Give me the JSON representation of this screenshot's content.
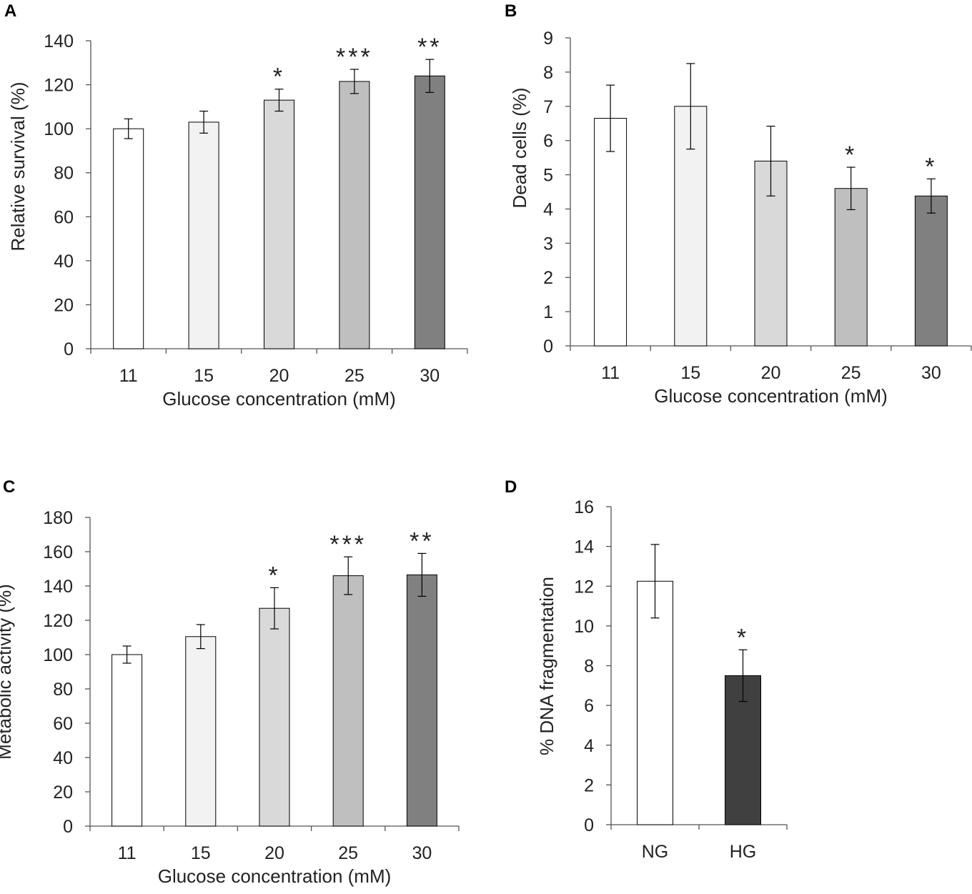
{
  "panels": [
    {
      "letter": "A"
    },
    {
      "letter": "B"
    },
    {
      "letter": "C"
    },
    {
      "letter": "D"
    }
  ],
  "chart_data": [
    {
      "type": "bar",
      "panel": "A",
      "title": "",
      "categories": [
        "11",
        "15",
        "20",
        "25",
        "30"
      ],
      "values": [
        100,
        103,
        113,
        121.5,
        124
      ],
      "errors": [
        4.5,
        5,
        5,
        5.5,
        7.5
      ],
      "significance": [
        "",
        "",
        "*",
        "***",
        "**"
      ],
      "colors": [
        "#ffffff",
        "#f2f2f2",
        "#d9d9d9",
        "#bfbfbf",
        "#808080"
      ],
      "xlabel": "Glucose concentration (mM)",
      "ylabel": "Relative survival (%)",
      "ylim": [
        0,
        140
      ],
      "yticks": [
        0,
        20,
        40,
        60,
        80,
        100,
        120,
        140
      ]
    },
    {
      "type": "bar",
      "panel": "B",
      "title": "",
      "categories": [
        "11",
        "15",
        "20",
        "25",
        "30"
      ],
      "values": [
        6.65,
        7.0,
        5.4,
        4.6,
        4.38
      ],
      "errors": [
        0.97,
        1.25,
        1.02,
        0.62,
        0.5
      ],
      "significance": [
        "",
        "",
        "",
        "*",
        "*"
      ],
      "colors": [
        "#ffffff",
        "#f2f2f2",
        "#d9d9d9",
        "#bfbfbf",
        "#808080"
      ],
      "xlabel": "Glucose concentration (mM)",
      "ylabel": "Dead cells (%)",
      "ylim": [
        0,
        9
      ],
      "yticks": [
        0,
        1,
        2,
        3,
        4,
        5,
        6,
        7,
        8,
        9
      ]
    },
    {
      "type": "bar",
      "panel": "C",
      "title": "",
      "categories": [
        "11",
        "15",
        "20",
        "25",
        "30"
      ],
      "values": [
        100,
        110.5,
        127,
        146,
        146.5
      ],
      "errors": [
        5,
        7,
        12,
        11,
        12.5
      ],
      "significance": [
        "",
        "",
        "*",
        "***",
        "**"
      ],
      "colors": [
        "#ffffff",
        "#f2f2f2",
        "#d9d9d9",
        "#bfbfbf",
        "#808080"
      ],
      "xlabel": "Glucose concentration (mM)",
      "ylabel": "Metabolic activity (%)",
      "ylim": [
        0,
        180
      ],
      "yticks": [
        0,
        20,
        40,
        60,
        80,
        100,
        120,
        140,
        160,
        180
      ]
    },
    {
      "type": "bar",
      "panel": "D",
      "title": "",
      "categories": [
        "NG",
        "HG"
      ],
      "values": [
        12.25,
        7.5
      ],
      "errors": [
        1.85,
        1.3
      ],
      "significance": [
        "",
        "*"
      ],
      "colors": [
        "#ffffff",
        "#404040"
      ],
      "xlabel": "",
      "ylabel": "% DNA fragmentation",
      "ylim": [
        0,
        16
      ],
      "yticks": [
        0,
        2,
        4,
        6,
        8,
        10,
        12,
        14,
        16
      ]
    }
  ]
}
